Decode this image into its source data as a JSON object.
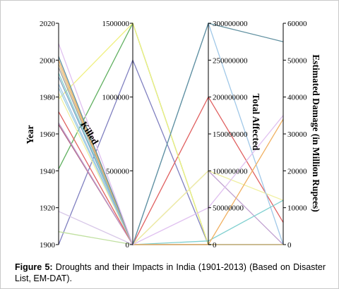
{
  "caption": {
    "label": "Figure 5:",
    "text": " Droughts and their Impacts in India (1901-2013) (Based on Disaster List, EM-DAT)."
  },
  "chart_data": {
    "type": "parallel-coordinates",
    "axes": [
      {
        "name": "Year",
        "min": 1900,
        "max": 2020,
        "ticks": [
          1900,
          1920,
          1940,
          1960,
          1980,
          2000,
          2020
        ],
        "tick_labels": [
          "1900",
          "1920",
          "1940",
          "1960",
          "1980",
          "2000",
          "2020"
        ]
      },
      {
        "name": "Killed",
        "min": 0,
        "max": 1500000,
        "ticks": [
          0,
          500000,
          1000000,
          1500000
        ],
        "tick_labels": [
          "0",
          "500000",
          "1000000",
          "1500000"
        ]
      },
      {
        "name": "Total Affected",
        "min": 0,
        "max": 300000000,
        "ticks": [
          0,
          50000000,
          100000000,
          150000000,
          200000000,
          250000000,
          300000000
        ],
        "tick_labels": [
          "0",
          "50000000",
          "100000000",
          "150000000",
          "200000000",
          "250000000",
          "300000000"
        ]
      },
      {
        "name": "Estimated Damage  (in Million Rupees)",
        "min": 0,
        "max": 60000,
        "ticks": [
          0,
          10000,
          20000,
          30000,
          40000,
          50000,
          60000
        ],
        "tick_labels": [
          "0",
          "10000",
          "20000",
          "30000",
          "40000",
          "50000",
          "60000"
        ]
      }
    ],
    "records": [
      {
        "values": [
          1900,
          1250000,
          0,
          0
        ],
        "color": "#8080c0"
      },
      {
        "values": [
          1907,
          0,
          0,
          0
        ],
        "color": "#c0e0a0"
      },
      {
        "values": [
          1918,
          0,
          0,
          0
        ],
        "color": "#d8c8e8"
      },
      {
        "values": [
          1941,
          1500000,
          0,
          0
        ],
        "color": "#60b060"
      },
      {
        "values": [
          1965,
          0,
          0,
          0
        ],
        "color": "#b06080"
      },
      {
        "values": [
          1966,
          0,
          100000000,
          0
        ],
        "color": "#c0a0d0"
      },
      {
        "values": [
          1972,
          0,
          200000000,
          6000
        ],
        "color": "#e06060"
      },
      {
        "values": [
          1979,
          1500000,
          0,
          0
        ],
        "color": "#f0f080"
      },
      {
        "values": [
          1982,
          0,
          100000000,
          12000
        ],
        "color": "#f0f0a0"
      },
      {
        "values": [
          1985,
          0,
          0,
          0
        ],
        "color": "#a0d0e0"
      },
      {
        "values": [
          1987,
          0,
          300000000,
          0
        ],
        "color": "#a0c8e8"
      },
      {
        "values": [
          1991,
          0,
          0,
          0
        ],
        "color": "#80a0c0"
      },
      {
        "values": [
          1993,
          0,
          5000000,
          12000
        ],
        "color": "#80d0d0"
      },
      {
        "values": [
          1996,
          0,
          0,
          0
        ],
        "color": "#a0a0a0"
      },
      {
        "values": [
          1998,
          0,
          0,
          0
        ],
        "color": "#e0c080"
      },
      {
        "values": [
          2000,
          0,
          0,
          34000
        ],
        "color": "#f0b060"
      },
      {
        "values": [
          2002,
          0,
          300000000,
          55000
        ],
        "color": "#6090a0"
      },
      {
        "values": [
          2009,
          0,
          50000000,
          35000
        ],
        "color": "#e0c0f0"
      }
    ]
  }
}
